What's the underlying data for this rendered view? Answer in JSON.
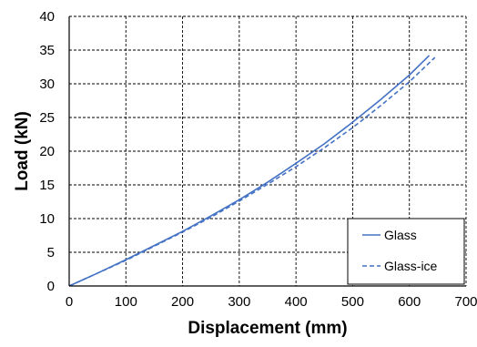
{
  "chart_data": {
    "type": "line",
    "xlabel": "Displacement (mm)",
    "ylabel": "Load (kN)",
    "xlim": [
      0,
      700
    ],
    "ylim": [
      0,
      40
    ],
    "xticks": [
      0,
      100,
      200,
      300,
      400,
      500,
      600,
      700
    ],
    "yticks": [
      0,
      5,
      10,
      15,
      20,
      25,
      30,
      35,
      40
    ],
    "grid": true,
    "legend_position": "bottom-right",
    "series": [
      {
        "name": "Glass",
        "line_style": "solid",
        "color": "#4472C4",
        "x": [
          0,
          50,
          100,
          150,
          200,
          250,
          300,
          350,
          400,
          450,
          500,
          550,
          600,
          635
        ],
        "y": [
          0,
          1.9,
          3.9,
          6.0,
          8.1,
          10.4,
          12.8,
          15.4,
          18.2,
          21.1,
          24.3,
          27.7,
          31.3,
          34.2
        ]
      },
      {
        "name": "Glass-ice",
        "line_style": "dashed",
        "color": "#4472C4",
        "x": [
          0,
          50,
          100,
          150,
          200,
          250,
          300,
          350,
          400,
          450,
          500,
          550,
          600,
          645
        ],
        "y": [
          0,
          1.9,
          3.8,
          5.9,
          8.0,
          10.2,
          12.6,
          15.1,
          17.7,
          20.5,
          23.5,
          26.8,
          30.3,
          33.9
        ]
      }
    ]
  },
  "colors": {
    "series": "#4472C4",
    "grid": "#000000",
    "background": "#ffffff"
  }
}
